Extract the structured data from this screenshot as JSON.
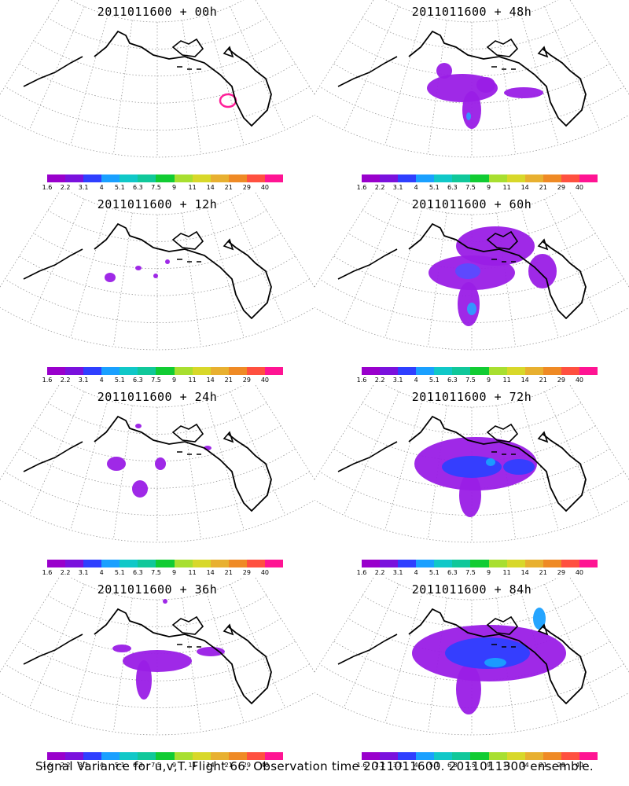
{
  "colorbar": {
    "colors": [
      "#9900cc",
      "#7a11dd",
      "#2f3fff",
      "#1aa0ff",
      "#10c8c8",
      "#10c89a",
      "#11cc33",
      "#a8df30",
      "#d8d82a",
      "#e8b030",
      "#ef8a25",
      "#ff5040",
      "#ff1493"
    ],
    "labels": [
      "1.6",
      "2.2",
      "3.1",
      "4",
      "5.1",
      "6.3",
      "7.5",
      "9",
      "11",
      "14",
      "21",
      "29",
      "40"
    ]
  },
  "panels": [
    {
      "title": "2011011600 + 00h",
      "blobs": [
        {
          "cx": 290,
          "cy": 128,
          "rx": 10,
          "ry": 8,
          "color": "#ff1493",
          "ring": true
        }
      ]
    },
    {
      "title": "2011011600 + 12h",
      "blobs": [
        {
          "cx": 140,
          "cy": 108,
          "rx": 7,
          "ry": 6
        },
        {
          "cx": 176,
          "cy": 96,
          "rx": 4,
          "ry": 3
        },
        {
          "cx": 198,
          "cy": 106,
          "rx": 3,
          "ry": 3
        },
        {
          "cx": 213,
          "cy": 88,
          "rx": 3,
          "ry": 3
        }
      ]
    },
    {
      "title": "2011011600 + 24h",
      "blobs": [
        {
          "cx": 148,
          "cy": 100,
          "rx": 12,
          "ry": 9
        },
        {
          "cx": 178,
          "cy": 132,
          "rx": 10,
          "ry": 11
        },
        {
          "cx": 204,
          "cy": 100,
          "rx": 7,
          "ry": 8
        },
        {
          "cx": 176,
          "cy": 52,
          "rx": 4,
          "ry": 3
        },
        {
          "cx": 264,
          "cy": 80,
          "rx": 5,
          "ry": 3
        }
      ]
    },
    {
      "title": "2011011600 + 36h",
      "blobs": [
        {
          "cx": 200,
          "cy": 106,
          "rx": 44,
          "ry": 14
        },
        {
          "cx": 183,
          "cy": 130,
          "rx": 10,
          "ry": 25
        },
        {
          "cx": 155,
          "cy": 90,
          "rx": 12,
          "ry": 5
        },
        {
          "cx": 268,
          "cy": 94,
          "rx": 18,
          "ry": 6
        },
        {
          "cx": 210,
          "cy": 30,
          "rx": 3,
          "ry": 3
        }
      ]
    },
    {
      "title": "2011011600 + 48h",
      "blobs": [
        {
          "cx": 188,
          "cy": 112,
          "rx": 45,
          "ry": 18
        },
        {
          "cx": 200,
          "cy": 140,
          "rx": 12,
          "ry": 24
        },
        {
          "cx": 266,
          "cy": 118,
          "rx": 25,
          "ry": 7
        },
        {
          "cx": 165,
          "cy": 90,
          "rx": 10,
          "ry": 10
        },
        {
          "cx": 218,
          "cy": 108,
          "rx": 12,
          "ry": 10
        },
        {
          "cx": 196,
          "cy": 148,
          "rx": 3,
          "ry": 5,
          "color": "#2f9bff"
        }
      ]
    },
    {
      "title": "2011011600 + 60h",
      "blobs": [
        {
          "cx": 200,
          "cy": 102,
          "rx": 55,
          "ry": 22
        },
        {
          "cx": 196,
          "cy": 142,
          "rx": 14,
          "ry": 28
        },
        {
          "cx": 230,
          "cy": 68,
          "rx": 50,
          "ry": 25
        },
        {
          "cx": 290,
          "cy": 100,
          "rx": 18,
          "ry": 22
        },
        {
          "cx": 195,
          "cy": 100,
          "rx": 16,
          "ry": 10,
          "color": "#5a4bff"
        },
        {
          "cx": 200,
          "cy": 148,
          "rx": 6,
          "ry": 8,
          "color": "#2f9bff"
        }
      ]
    },
    {
      "title": "2011011600 + 72h",
      "blobs": [
        {
          "cx": 205,
          "cy": 100,
          "rx": 78,
          "ry": 34
        },
        {
          "cx": 198,
          "cy": 140,
          "rx": 14,
          "ry": 28
        },
        {
          "cx": 200,
          "cy": 104,
          "rx": 38,
          "ry": 14,
          "color": "#2f3fff"
        },
        {
          "cx": 260,
          "cy": 104,
          "rx": 20,
          "ry": 10,
          "color": "#2f3fff"
        },
        {
          "cx": 224,
          "cy": 98,
          "rx": 6,
          "ry": 5,
          "color": "#1aa0ff"
        }
      ]
    },
    {
      "title": "2011011600 + 84h",
      "blobs": [
        {
          "cx": 222,
          "cy": 96,
          "rx": 98,
          "ry": 36
        },
        {
          "cx": 196,
          "cy": 142,
          "rx": 16,
          "ry": 32
        },
        {
          "cx": 220,
          "cy": 96,
          "rx": 54,
          "ry": 20,
          "color": "#2f3fff"
        },
        {
          "cx": 286,
          "cy": 52,
          "rx": 8,
          "ry": 14,
          "color": "#1aa0ff"
        },
        {
          "cx": 230,
          "cy": 108,
          "rx": 14,
          "ry": 6,
          "color": "#1aa0ff"
        }
      ]
    }
  ],
  "footer": "Signal Variance for u,v,T. Flight 66. Observation time 2011011600. 2011011300 ensemble."
}
